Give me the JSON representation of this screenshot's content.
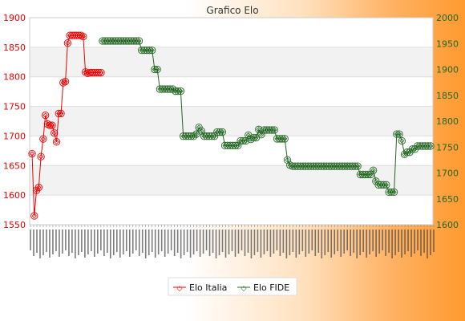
{
  "chart_data": {
    "type": "line",
    "title": "Grafico Elo",
    "x_tick_labels": "dense, illegible overlapping date labels",
    "left_axis": {
      "ylim": [
        1550,
        1900
      ],
      "ticks": [
        1550,
        1600,
        1650,
        1700,
        1750,
        1800,
        1850,
        1900
      ],
      "color": "#ee0000"
    },
    "right_axis": {
      "ylim": [
        1600,
        2000
      ],
      "ticks": [
        1600,
        1650,
        1700,
        1750,
        1800,
        1850,
        1900,
        1950,
        2000
      ],
      "color": "#226622"
    },
    "legend_position": "bottom-center",
    "series": [
      {
        "name": "Elo Italia",
        "axis": "left",
        "color": "#ee0000",
        "values": [
          1670,
          1565,
          1608,
          1613,
          1665,
          1695,
          1735,
          1720,
          1718,
          1718,
          1705,
          1690,
          1738,
          1738,
          1790,
          1792,
          1857,
          1870,
          1870,
          1870,
          1870,
          1870,
          1870,
          1868,
          1808,
          1806,
          1807,
          1807,
          1807,
          1807,
          1807,
          1807
        ]
      },
      {
        "name": "Elo FIDE",
        "axis": "right",
        "color": "#226622",
        "values": [
          1955,
          1955,
          1955,
          1955,
          1955,
          1955,
          1955,
          1955,
          1955,
          1955,
          1955,
          1955,
          1955,
          1955,
          1955,
          1937,
          1937,
          1937,
          1937,
          1937,
          1900,
          1900,
          1862,
          1862,
          1862,
          1862,
          1862,
          1862,
          1858,
          1858,
          1858,
          1771,
          1771,
          1771,
          1771,
          1771,
          1775,
          1788,
          1781,
          1771,
          1771,
          1771,
          1771,
          1771,
          1779,
          1779,
          1779,
          1753,
          1753,
          1753,
          1753,
          1753,
          1753,
          1762,
          1762,
          1762,
          1773,
          1765,
          1768,
          1768,
          1784,
          1774,
          1783,
          1783,
          1783,
          1783,
          1783,
          1766,
          1766,
          1766,
          1766,
          1725,
          1715,
          1713,
          1713,
          1713,
          1713,
          1713,
          1713,
          1713,
          1713,
          1713,
          1713,
          1713,
          1713,
          1713,
          1713,
          1713,
          1713,
          1713,
          1713,
          1713,
          1713,
          1713,
          1713,
          1713,
          1713,
          1713,
          1713,
          1697,
          1697,
          1697,
          1697,
          1697,
          1705,
          1684,
          1677,
          1677,
          1677,
          1677,
          1663,
          1663,
          1663,
          1775,
          1775,
          1762,
          1736,
          1740,
          1740,
          1746,
          1746,
          1752,
          1752,
          1752,
          1752,
          1752,
          1752
        ]
      }
    ]
  }
}
